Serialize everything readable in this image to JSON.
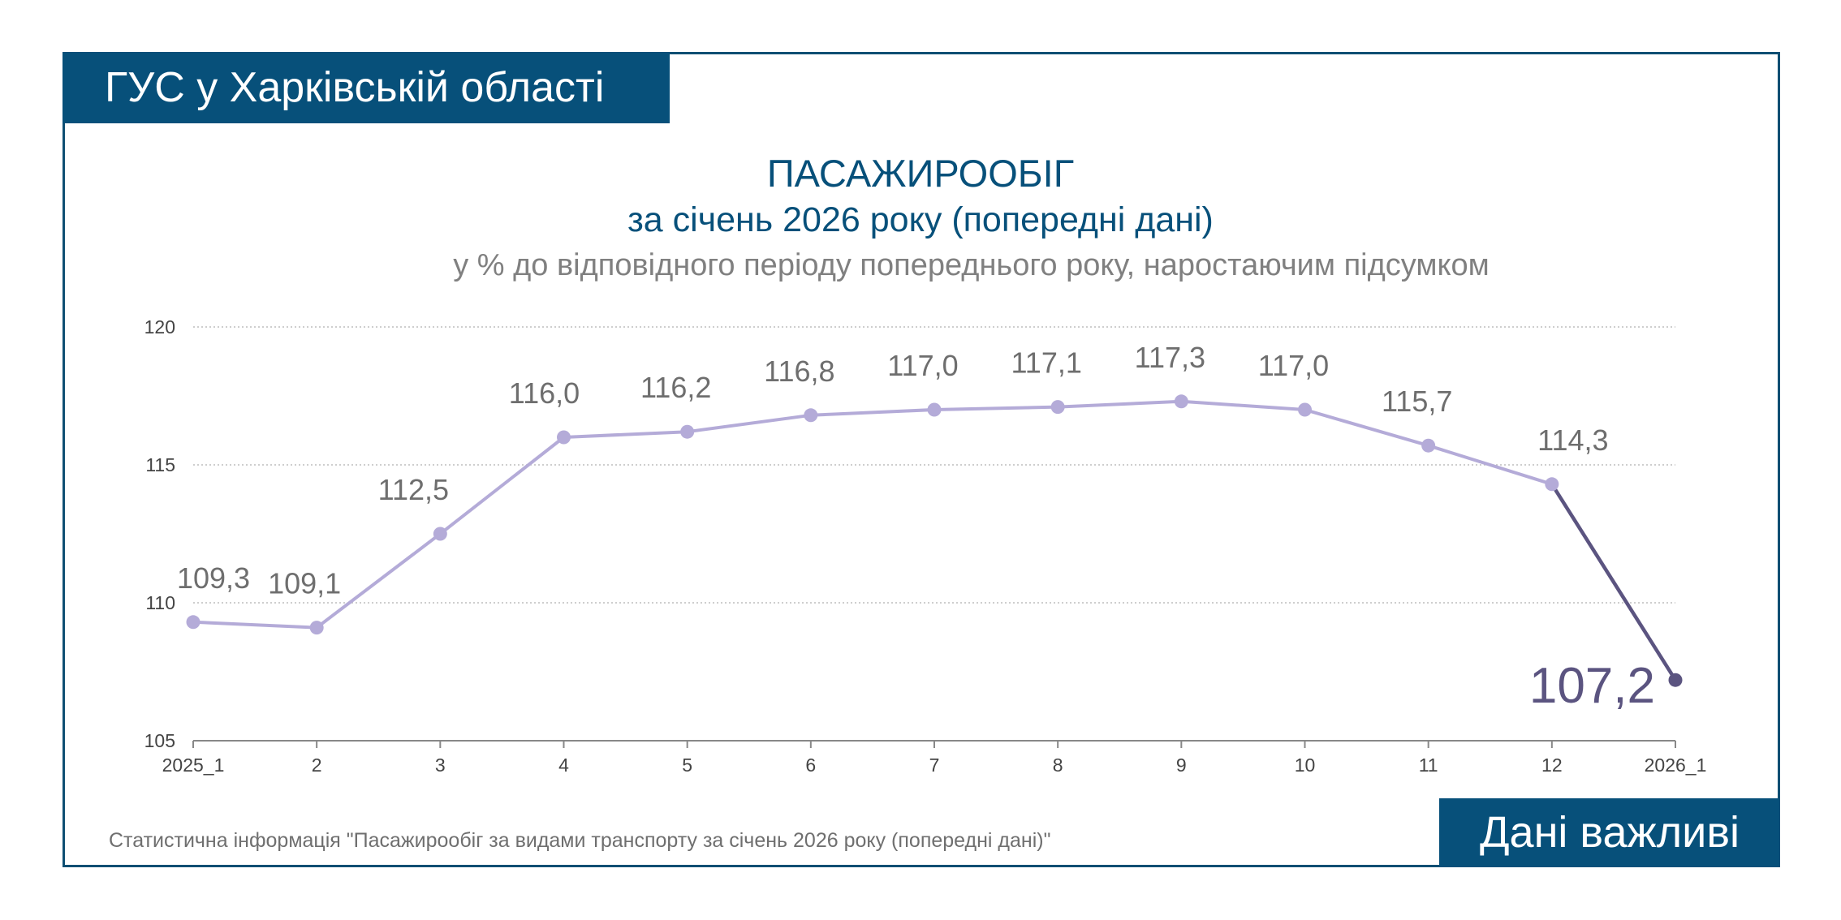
{
  "header": {
    "org_label": "ГУС у Харківській області",
    "title_line1": "ПАСАЖИРООБІГ",
    "title_line2": "за січень 2026 року (попередні дані)",
    "subtitle": "у % до відповідного періоду попереднього року, наростаючим підсумком"
  },
  "footer": {
    "source": "Статистична інформація \"Пасажирообіг за видами транспорту за січень 2026 року (попередні дані)\"",
    "badge": "Дані важливі"
  },
  "colors": {
    "brand": "#07507a",
    "line_main": "#b4abd8",
    "line_last": "#5b5480"
  },
  "chart_data": {
    "type": "line",
    "title": "ПАСАЖИРООБІГ",
    "subtitle": "у % до відповідного періоду попереднього року, наростаючим підсумком",
    "categories": [
      "2025_1",
      "2",
      "3",
      "4",
      "5",
      "6",
      "7",
      "8",
      "9",
      "10",
      "11",
      "12",
      "2026_1"
    ],
    "values": [
      109.3,
      109.1,
      112.5,
      116.0,
      116.2,
      116.8,
      117.0,
      117.1,
      117.3,
      117.0,
      115.7,
      114.3,
      107.2
    ],
    "data_labels": [
      "109,3",
      "109,1",
      "112,5",
      "116,0",
      "116,2",
      "116,8",
      "117,0",
      "117,1",
      "117,3",
      "117,0",
      "115,7",
      "114,3",
      "107,2"
    ],
    "ylim": [
      105,
      120
    ],
    "yticks": [
      105,
      110,
      115,
      120
    ],
    "ytick_labels": [
      "105",
      "110",
      "115",
      "120"
    ],
    "grid": true,
    "legend": "none"
  }
}
